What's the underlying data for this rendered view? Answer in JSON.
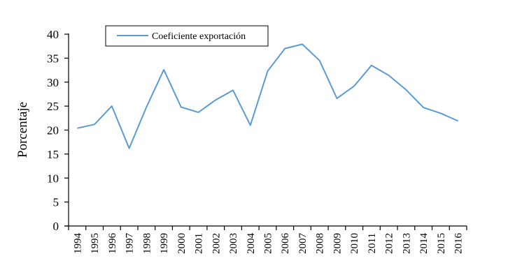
{
  "chart_data": {
    "type": "line",
    "title": "",
    "xlabel": "",
    "ylabel": "Porcentaje",
    "categories": [
      "1994",
      "1995",
      "1996",
      "1997",
      "1998",
      "1999",
      "2000",
      "2001",
      "2002",
      "2003",
      "2004",
      "2005",
      "2006",
      "2007",
      "2008",
      "2009",
      "2010",
      "2011",
      "2012",
      "2013",
      "2014",
      "2015",
      "2016"
    ],
    "yticks": [
      "0",
      "5",
      "10",
      "15",
      "20",
      "25",
      "30",
      "35",
      "40"
    ],
    "ylim": [
      0,
      40
    ],
    "series": [
      {
        "name": "Coeficiente exportación",
        "color": "#5B9BD5",
        "values": [
          20.4,
          21.2,
          25.0,
          16.2,
          24.8,
          32.6,
          24.8,
          23.7,
          26.3,
          28.3,
          21.0,
          32.3,
          37.0,
          37.9,
          34.5,
          26.6,
          29.2,
          33.5,
          31.4,
          28.4,
          24.7,
          23.5,
          21.9
        ]
      }
    ],
    "grid": false,
    "legend": "top-left"
  }
}
